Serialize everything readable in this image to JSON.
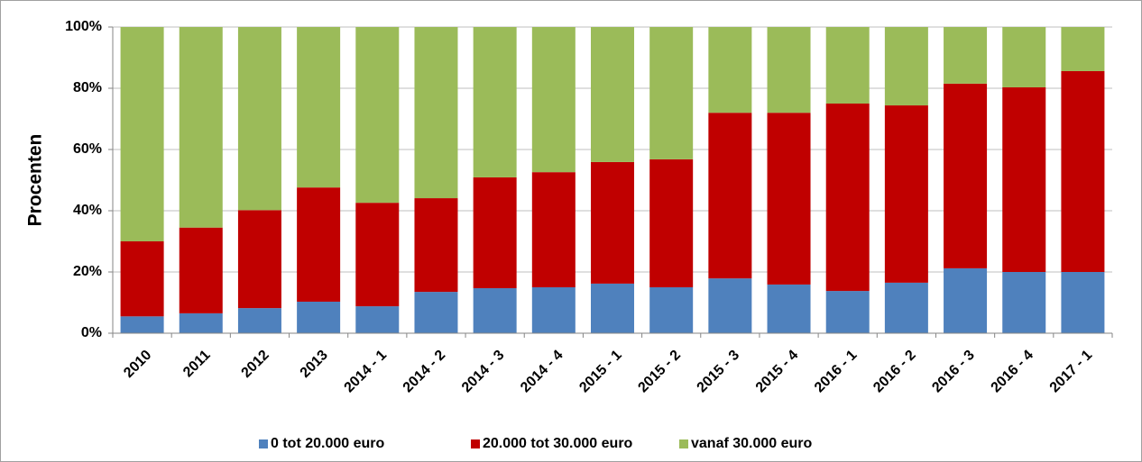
{
  "chart_data": {
    "type": "stacked_bar",
    "y_label": "Procenten",
    "categories": [
      "2010",
      "2011",
      "2012",
      "2013",
      "2014 - 1",
      "2014 - 2",
      "2014 - 3",
      "2014 - 4",
      "2015 - 1",
      "2015 - 2",
      "2015 - 3",
      "2015 - 4",
      "2016 - 1",
      "2016 - 2",
      "2016 - 3",
      "2016 - 4",
      "2017 - 1"
    ],
    "series": [
      {
        "name": "0 tot 20.000 euro",
        "color": "#4f81bd",
        "values": [
          5.5,
          6.5,
          8.2,
          10.3,
          8.8,
          13.5,
          14.7,
          15,
          16.2,
          15,
          17.9,
          15.9,
          13.8,
          16.5,
          21.2,
          20,
          20
        ]
      },
      {
        "name": "20.000 tot 30.000 euro",
        "color": "#c00000",
        "values": [
          24.5,
          28,
          32,
          37.3,
          33.8,
          30.6,
          36.2,
          37.6,
          39.7,
          41.8,
          54.1,
          56.1,
          61.2,
          57.9,
          60.3,
          60.3,
          65.6
        ]
      },
      {
        "name": "vanaf 30.000 euro",
        "color": "#9bbb59",
        "values": [
          70,
          65.5,
          59.8,
          52.4,
          57.4,
          55.9,
          49.1,
          47.4,
          44.1,
          43.2,
          28,
          28,
          25,
          25.6,
          18.5,
          19.7,
          14.4
        ]
      }
    ],
    "ylim": [
      0,
      100
    ],
    "yticks": [
      {
        "value": 0,
        "label": "0%"
      },
      {
        "value": 20,
        "label": "20%"
      },
      {
        "value": 40,
        "label": "40%"
      },
      {
        "value": 60,
        "label": "60%"
      },
      {
        "value": 80,
        "label": "80%"
      },
      {
        "value": 100,
        "label": "100%"
      }
    ],
    "grid": true,
    "legend": "bottom"
  }
}
